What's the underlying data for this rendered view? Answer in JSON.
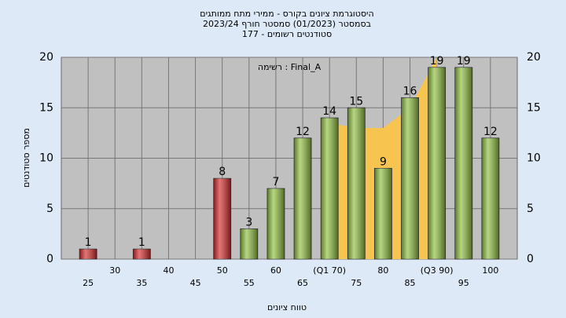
{
  "chart_data": {
    "type": "bar",
    "title": [
      "היסטוגרמת ציונים בקורס - ממירי מתח ממותגים",
      "בסמסטר  (01/2023)  סמסטר חורף 2023/24",
      "סטודנטים רשומים - 177"
    ],
    "annotation": "רשימה : Final_A",
    "xlabel": "טווח ציונים",
    "ylabel": "מספר סטודנטים",
    "x": [
      25,
      30,
      35,
      40,
      45,
      50,
      55,
      60,
      65,
      70,
      75,
      80,
      85,
      90,
      95,
      100
    ],
    "values": [
      1,
      0,
      1,
      0,
      0,
      8,
      3,
      7,
      12,
      14,
      15,
      9,
      16,
      19,
      19,
      12
    ],
    "colors": [
      "#d42a2a",
      "#d42a2a",
      "#d42a2a",
      "#d42a2a",
      "#d42a2a",
      "#d42a2a",
      "#8fbf3f",
      "#8fbf3f",
      "#8fbf3f",
      "#8fbf3f",
      "#8fbf3f",
      "#8fbf3f",
      "#8fbf3f",
      "#8fbf3f",
      "#8fbf3f",
      "#8fbf3f"
    ],
    "band": {
      "color": "#f7c54f",
      "x": [
        70,
        75,
        80,
        85,
        90
      ],
      "values": [
        13.5,
        13,
        13,
        15,
        20
      ]
    },
    "xlim": [
      20,
      105
    ],
    "xticks": [
      25,
      30,
      35,
      40,
      45,
      50,
      55,
      60,
      65,
      {
        "value": 70,
        "label": "(Q1 70)"
      },
      75,
      80,
      85,
      {
        "value": 90,
        "label": "(Q3 90)"
      },
      95,
      100
    ],
    "ylim": [
      0,
      20
    ],
    "yticks": [
      0,
      5,
      10,
      15,
      20
    ],
    "grid": true
  }
}
